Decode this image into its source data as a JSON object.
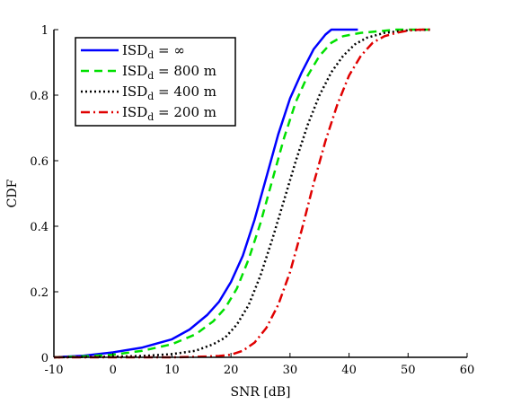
{
  "chart_data": {
    "type": "line",
    "title": "",
    "xlabel": "SNR [dB]",
    "ylabel": "CDF",
    "xlim": [
      -10,
      60
    ],
    "ylim": [
      0,
      1
    ],
    "xticks": [
      -10,
      0,
      10,
      20,
      30,
      40,
      50,
      60
    ],
    "yticks": [
      0,
      0.2,
      0.4,
      0.6,
      0.8,
      1
    ],
    "xtick_labels": [
      "-10",
      "0",
      "10",
      "20",
      "30",
      "40",
      "50",
      "60"
    ],
    "ytick_labels": [
      "0",
      "0.2",
      "0.4",
      "0.6",
      "0.8",
      "1"
    ],
    "grid": false,
    "legend_position": "top-left",
    "series": [
      {
        "name": "ISD_d = ∞",
        "legend_main": "ISD",
        "legend_sub": "d",
        "legend_rest": " = ∞",
        "color": "#0000ff",
        "style": "solid",
        "x": [
          -10,
          -5,
          0,
          5,
          10,
          13,
          16,
          18,
          20,
          22,
          24,
          26,
          28,
          30,
          32,
          34,
          36,
          37,
          38,
          41.5
        ],
        "y": [
          0,
          0.005,
          0.015,
          0.03,
          0.055,
          0.085,
          0.13,
          0.17,
          0.23,
          0.31,
          0.42,
          0.55,
          0.68,
          0.79,
          0.87,
          0.94,
          0.985,
          1,
          1,
          1
        ]
      },
      {
        "name": "ISD_d = 800 m",
        "legend_main": "ISD",
        "legend_sub": "d",
        "legend_rest": " = 800 m",
        "color": "#00e000",
        "style": "dashed",
        "x": [
          -10,
          -5,
          0,
          5,
          10,
          14,
          17,
          19,
          21,
          23,
          25,
          27,
          29,
          31,
          33,
          35,
          37,
          39,
          42,
          45,
          48,
          53.5
        ],
        "y": [
          0,
          0.003,
          0.008,
          0.02,
          0.04,
          0.07,
          0.11,
          0.15,
          0.21,
          0.3,
          0.41,
          0.54,
          0.67,
          0.78,
          0.86,
          0.92,
          0.96,
          0.98,
          0.99,
          0.995,
          1,
          1
        ]
      },
      {
        "name": "ISD_d = 400 m",
        "legend_main": "ISD",
        "legend_sub": "d",
        "legend_rest": " = 400 m",
        "color": "#000000",
        "style": "dotted",
        "x": [
          -10,
          -5,
          0,
          5,
          10,
          14,
          17,
          19,
          21,
          23,
          25,
          27,
          29,
          31,
          33,
          35,
          37,
          39,
          41,
          43,
          46,
          50,
          54
        ],
        "y": [
          0,
          0.001,
          0.002,
          0.004,
          0.01,
          0.02,
          0.04,
          0.06,
          0.1,
          0.16,
          0.25,
          0.36,
          0.48,
          0.6,
          0.71,
          0.8,
          0.87,
          0.92,
          0.955,
          0.975,
          0.99,
          0.998,
          1
        ]
      },
      {
        "name": "ISD_d = 200 m",
        "legend_main": "ISD",
        "legend_sub": "d",
        "legend_rest": " = 200 m",
        "color": "#e00000",
        "style": "dashdot",
        "x": [
          -10,
          0,
          10,
          15,
          18,
          20,
          22,
          24,
          26,
          28,
          30,
          32,
          34,
          36,
          38,
          40,
          42,
          44,
          46,
          48,
          50,
          52,
          54
        ],
        "y": [
          0,
          0,
          0,
          0.002,
          0.004,
          0.008,
          0.02,
          0.045,
          0.09,
          0.16,
          0.26,
          0.39,
          0.53,
          0.66,
          0.77,
          0.86,
          0.92,
          0.96,
          0.98,
          0.99,
          0.997,
          1,
          1
        ]
      }
    ]
  }
}
